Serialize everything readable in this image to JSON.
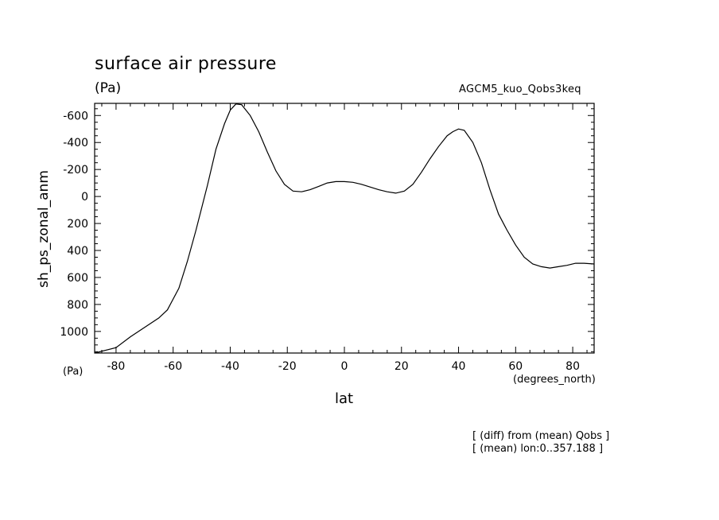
{
  "chart_data": {
    "type": "line",
    "title": "surface air pressure",
    "units_label": "(Pa)",
    "experiment": "AGCM5_kuo_Qobs3keq",
    "ylabel": "sh_ps_zonal_anm",
    "yunits": "(Pa)",
    "xlabel": "lat",
    "xunits": "(degrees_north)",
    "notes": [
      "[ (diff) from (mean) Qobs ]",
      "[ (mean) lon:0..357.188 ]"
    ],
    "xlim": [
      -87.5,
      87.5
    ],
    "ylim": [
      1160,
      -690
    ],
    "y_inverted": true,
    "xticks": [
      -80,
      -60,
      -40,
      -20,
      0,
      20,
      40,
      60,
      80
    ],
    "xtick_labels": [
      "-80",
      "-60",
      "-40",
      "-20",
      "0",
      "20",
      "40",
      "60",
      "80"
    ],
    "yticks": [
      -600,
      -400,
      -200,
      0,
      200,
      400,
      600,
      800,
      1000
    ],
    "ytick_labels": [
      "-600",
      "-400",
      "-200",
      "0",
      "200",
      "400",
      "600",
      "800",
      "1000"
    ],
    "grid": false,
    "legend": "none",
    "line_color": "#000000",
    "series": [
      {
        "x": [
          -87.5,
          -80,
          -75,
          -70,
          -65,
          -62,
          -58,
          -55,
          -52,
          -48,
          -45,
          -42,
          -40,
          -38,
          -36,
          -33,
          -30,
          -27,
          -24,
          -21,
          -18,
          -15,
          -12,
          -9,
          -6,
          -3,
          0,
          3,
          6,
          9,
          12,
          15,
          18,
          21,
          24,
          27,
          30,
          33,
          36,
          38,
          40,
          42,
          45,
          48,
          51,
          54,
          57,
          60,
          63,
          66,
          69,
          72,
          75,
          78,
          81,
          84,
          87.5
        ],
        "y": [
          1170,
          1120,
          1040,
          970,
          900,
          840,
          680,
          480,
          250,
          -80,
          -350,
          -540,
          -640,
          -685,
          -680,
          -600,
          -480,
          -330,
          -190,
          -90,
          -40,
          -35,
          -50,
          -75,
          -100,
          -110,
          -110,
          -105,
          -90,
          -70,
          -50,
          -35,
          -25,
          -40,
          -90,
          -180,
          -280,
          -370,
          -450,
          -480,
          -500,
          -490,
          -400,
          -250,
          -50,
          130,
          250,
          360,
          450,
          500,
          520,
          530,
          520,
          510,
          495,
          495,
          500
        ]
      }
    ]
  }
}
